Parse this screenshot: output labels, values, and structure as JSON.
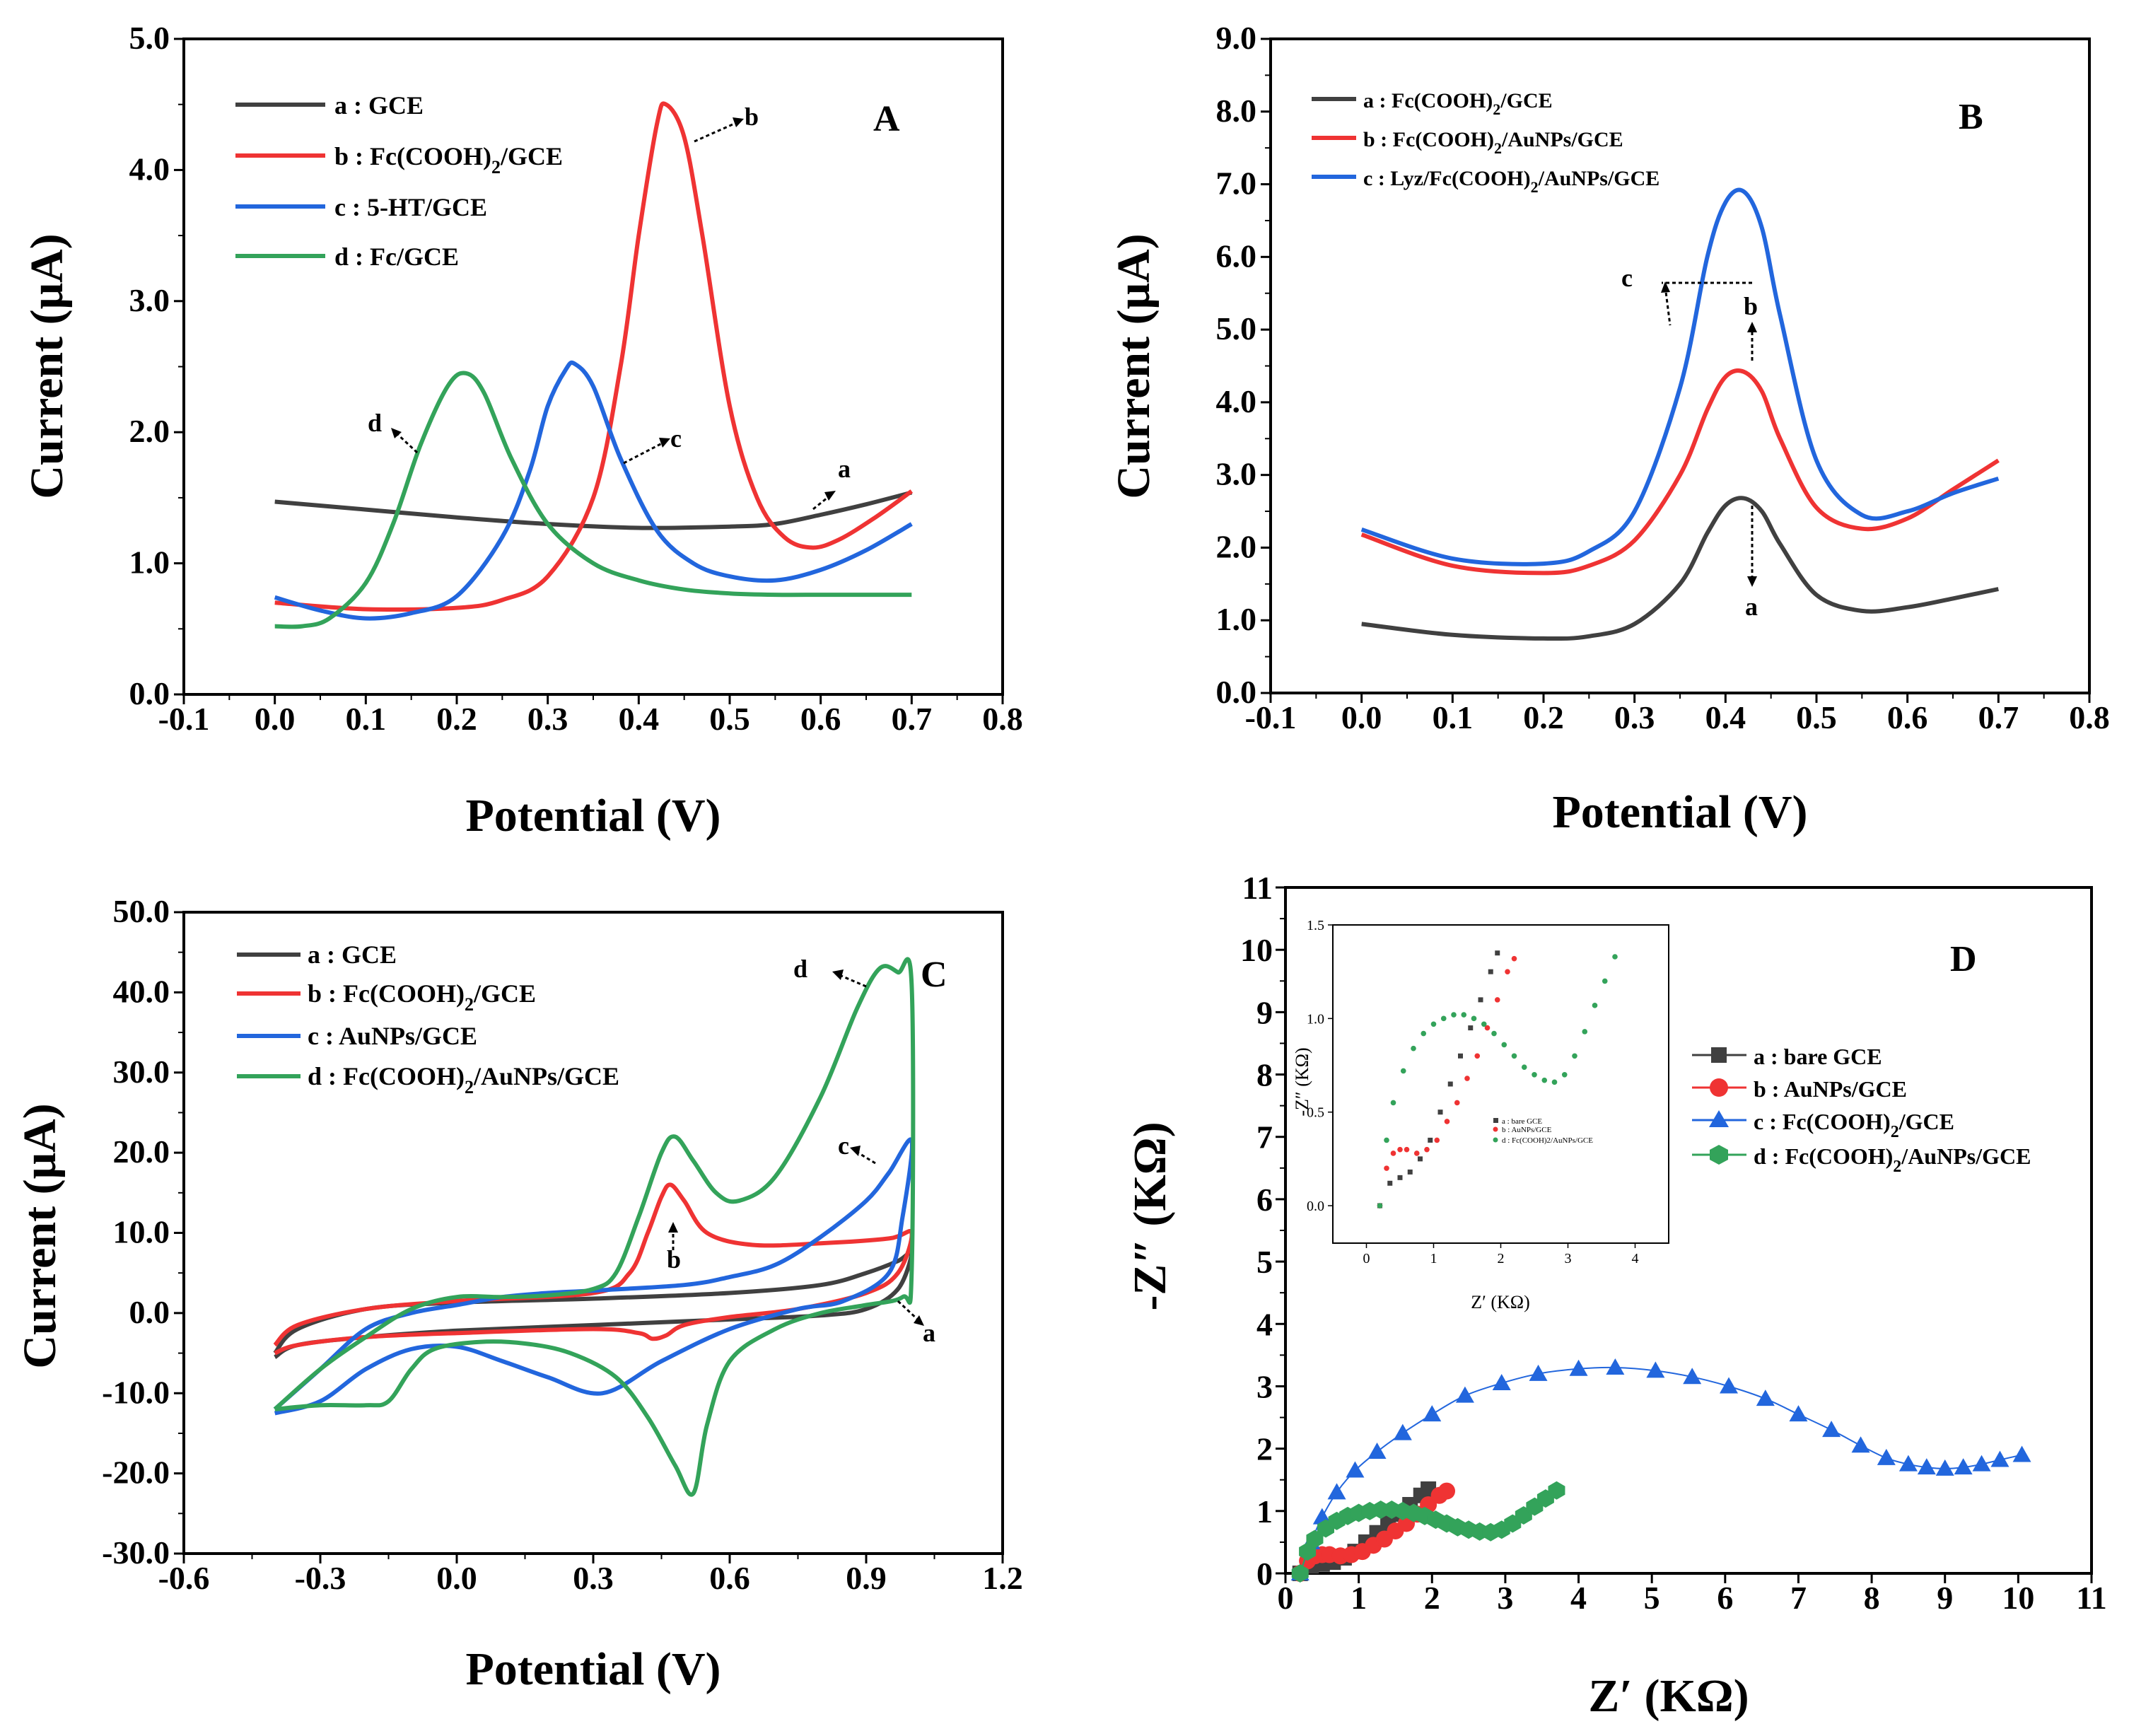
{
  "figure": {
    "colors": {
      "a": "#404040",
      "b": "#ef3333",
      "c": "#2266dd",
      "d": "#33a35a"
    },
    "subscript_2": "2"
  },
  "chart_data": [
    {
      "panel": "A",
      "type": "line",
      "letter": "A",
      "xlabel": "Potential (V)",
      "ylabel": "Current (μA)",
      "xlim": [
        -0.1,
        0.8
      ],
      "ylim": [
        0.0,
        5.0
      ],
      "xticks": [
        "-0.1",
        "0.0",
        "0.1",
        "0.2",
        "0.3",
        "0.4",
        "0.5",
        "0.6",
        "0.7",
        "0.8"
      ],
      "yticks": [
        "0.0",
        "1.0",
        "2.0",
        "3.0",
        "4.0",
        "5.0"
      ],
      "legend": [
        {
          "key": "a",
          "label": "a : GCE"
        },
        {
          "key": "b",
          "label": "b : Fc(COOH)",
          "sub": "2",
          "suffix": "/GCE"
        },
        {
          "key": "c",
          "label": "c : 5-HT/GCE"
        },
        {
          "key": "d",
          "label": "d : Fc/GCE"
        }
      ],
      "annotations": [
        "a",
        "b",
        "c",
        "d"
      ],
      "series": [
        {
          "name": "a : GCE",
          "key": "a",
          "x": [
            0.0,
            0.1,
            0.2,
            0.3,
            0.4,
            0.5,
            0.55,
            0.6,
            0.65,
            0.7
          ],
          "y": [
            1.47,
            1.41,
            1.35,
            1.3,
            1.27,
            1.28,
            1.3,
            1.37,
            1.45,
            1.54
          ]
        },
        {
          "name": "b : Fc(COOH)2/GCE",
          "key": "b",
          "x": [
            0.0,
            0.1,
            0.2,
            0.25,
            0.3,
            0.35,
            0.38,
            0.4,
            0.42,
            0.43,
            0.45,
            0.47,
            0.5,
            0.53,
            0.56,
            0.59,
            0.62,
            0.66,
            0.7
          ],
          "y": [
            0.7,
            0.65,
            0.66,
            0.72,
            0.9,
            1.5,
            2.5,
            3.5,
            4.35,
            4.5,
            4.25,
            3.5,
            2.2,
            1.5,
            1.2,
            1.12,
            1.18,
            1.35,
            1.55
          ]
        },
        {
          "name": "c : 5-HT/GCE",
          "key": "c",
          "x": [
            0.0,
            0.05,
            0.1,
            0.15,
            0.2,
            0.25,
            0.28,
            0.3,
            0.32,
            0.33,
            0.35,
            0.38,
            0.42,
            0.46,
            0.5,
            0.55,
            0.6,
            0.65,
            0.7
          ],
          "y": [
            0.74,
            0.64,
            0.58,
            0.62,
            0.75,
            1.2,
            1.7,
            2.2,
            2.48,
            2.52,
            2.35,
            1.8,
            1.25,
            1.0,
            0.9,
            0.87,
            0.95,
            1.1,
            1.3
          ]
        },
        {
          "name": "d : Fc/GCE",
          "key": "d",
          "x": [
            0.0,
            0.03,
            0.06,
            0.1,
            0.13,
            0.16,
            0.19,
            0.21,
            0.23,
            0.26,
            0.3,
            0.35,
            0.4,
            0.45,
            0.5,
            0.55,
            0.6,
            0.65,
            0.7
          ],
          "y": [
            0.52,
            0.52,
            0.58,
            0.85,
            1.3,
            1.9,
            2.35,
            2.45,
            2.3,
            1.8,
            1.3,
            1.0,
            0.87,
            0.8,
            0.77,
            0.76,
            0.76,
            0.76,
            0.76
          ]
        }
      ]
    },
    {
      "panel": "B",
      "type": "line",
      "letter": "B",
      "xlabel": "Potential (V)",
      "ylabel": "Current (μA)",
      "xlim": [
        -0.1,
        0.8
      ],
      "ylim": [
        0.0,
        9.0
      ],
      "xticks": [
        "-0.1",
        "0.0",
        "0.1",
        "0.2",
        "0.3",
        "0.4",
        "0.5",
        "0.6",
        "0.7",
        "0.8"
      ],
      "yticks": [
        "0.0",
        "1.0",
        "2.0",
        "3.0",
        "4.0",
        "5.0",
        "6.0",
        "7.0",
        "8.0",
        "9.0"
      ],
      "legend": [
        {
          "key": "a",
          "label": "a : Fc(COOH)",
          "sub": "2",
          "suffix": "/GCE"
        },
        {
          "key": "b",
          "label": "b : Fc(COOH)",
          "sub": "2",
          "suffix": "/AuNPs/GCE"
        },
        {
          "key": "c",
          "label": "c : Lyz/Fc(COOH)",
          "sub": "2",
          "suffix": "/AuNPs/GCE"
        }
      ],
      "annotations": [
        "a",
        "b",
        "c"
      ],
      "series": [
        {
          "name": "a : Fc(COOH)2/GCE",
          "key": "a",
          "x": [
            0.0,
            0.1,
            0.2,
            0.25,
            0.3,
            0.35,
            0.38,
            0.4,
            0.42,
            0.44,
            0.46,
            0.5,
            0.55,
            0.6,
            0.65,
            0.7
          ],
          "y": [
            0.95,
            0.8,
            0.75,
            0.78,
            0.95,
            1.5,
            2.2,
            2.58,
            2.68,
            2.5,
            2.05,
            1.35,
            1.13,
            1.18,
            1.3,
            1.43
          ]
        },
        {
          "name": "b : Fc(COOH)2/AuNPs/GCE",
          "key": "b",
          "x": [
            0.0,
            0.1,
            0.2,
            0.25,
            0.3,
            0.35,
            0.38,
            0.4,
            0.42,
            0.44,
            0.46,
            0.5,
            0.55,
            0.6,
            0.65,
            0.7
          ],
          "y": [
            2.18,
            1.75,
            1.65,
            1.75,
            2.1,
            3.0,
            3.9,
            4.35,
            4.42,
            4.15,
            3.5,
            2.55,
            2.26,
            2.4,
            2.8,
            3.2
          ]
        },
        {
          "name": "c : Lyz/Fc(COOH)2/AuNPs/GCE",
          "key": "c",
          "x": [
            0.0,
            0.1,
            0.2,
            0.25,
            0.3,
            0.35,
            0.38,
            0.4,
            0.42,
            0.44,
            0.46,
            0.5,
            0.55,
            0.6,
            0.65,
            0.7
          ],
          "y": [
            2.25,
            1.85,
            1.78,
            1.95,
            2.5,
            4.2,
            6.0,
            6.75,
            6.9,
            6.4,
            5.2,
            3.2,
            2.45,
            2.5,
            2.75,
            2.95
          ]
        }
      ]
    },
    {
      "panel": "C",
      "type": "line",
      "letter": "C",
      "xlabel": "Potential (V)",
      "ylabel": "Current (μA)",
      "xlim": [
        -0.6,
        1.2
      ],
      "ylim": [
        -30.0,
        50.0
      ],
      "xticks": [
        "-0.6",
        "-0.3",
        "0.0",
        "0.3",
        "0.6",
        "0.9",
        "1.2"
      ],
      "yticks": [
        "-30.0",
        "-20.0",
        "-10.0",
        "0.0",
        "10.0",
        "20.0",
        "30.0",
        "40.0",
        "50.0"
      ],
      "legend": [
        {
          "key": "a",
          "label": "a : GCE"
        },
        {
          "key": "b",
          "label": "b : Fc(COOH)",
          "sub": "2",
          "suffix": "/GCE"
        },
        {
          "key": "c",
          "label": "c : AuNPs/GCE"
        },
        {
          "key": "d",
          "label": "d : Fc(COOH)",
          "sub": "2",
          "suffix": "/AuNPs/GCE"
        }
      ],
      "annotations": [
        "a",
        "b",
        "c",
        "d"
      ],
      "series": [
        {
          "name": "a : GCE",
          "key": "a",
          "x": [
            -0.4,
            -0.35,
            -0.2,
            0.0,
            0.3,
            0.6,
            0.8,
            0.9,
            0.97,
            1.0,
            0.97,
            0.9,
            0.8,
            0.6,
            0.3,
            0.0,
            -0.2,
            -0.35,
            -0.4
          ],
          "y": [
            -5.0,
            -2.0,
            0.5,
            1.3,
            1.8,
            2.5,
            3.5,
            5.0,
            6.5,
            7.5,
            3.0,
            0.5,
            -0.3,
            -0.8,
            -1.5,
            -2.2,
            -3.0,
            -4.0,
            -5.5
          ]
        },
        {
          "name": "b : Fc(COOH)2/GCE",
          "key": "b",
          "x": [
            -0.4,
            -0.35,
            -0.2,
            0.0,
            0.3,
            0.38,
            0.42,
            0.45,
            0.47,
            0.5,
            0.55,
            0.65,
            0.8,
            0.95,
            1.0,
            0.97,
            0.9,
            0.75,
            0.6,
            0.5,
            0.46,
            0.43,
            0.4,
            0.3,
            0.0,
            -0.2,
            -0.35,
            -0.4
          ],
          "y": [
            -4.0,
            -1.5,
            0.5,
            1.5,
            2.5,
            5.0,
            10.0,
            14.5,
            16.0,
            14.0,
            10.0,
            8.5,
            8.7,
            9.3,
            10.0,
            5.0,
            2.5,
            0.5,
            -0.5,
            -1.5,
            -2.8,
            -3.2,
            -2.5,
            -2.0,
            -2.5,
            -3.0,
            -4.0,
            -5.0
          ]
        },
        {
          "name": "c : AuNPs/GCE",
          "key": "c",
          "x": [
            -0.4,
            -0.3,
            -0.2,
            -0.1,
            0.0,
            0.1,
            0.2,
            0.3,
            0.5,
            0.6,
            0.7,
            0.8,
            0.9,
            0.95,
            1.0,
            0.98,
            0.95,
            0.85,
            0.75,
            0.6,
            0.45,
            0.32,
            0.2,
            0.1,
            0.0,
            -0.1,
            -0.2,
            -0.3,
            -0.4
          ],
          "y": [
            -12.0,
            -7.0,
            -2.0,
            0.0,
            1.0,
            2.0,
            2.5,
            2.8,
            3.5,
            4.5,
            6.0,
            9.5,
            14.0,
            17.5,
            21.5,
            12.0,
            5.0,
            1.5,
            0.5,
            -2.0,
            -6.0,
            -10.0,
            -8.0,
            -6.0,
            -4.2,
            -4.5,
            -7.0,
            -11.0,
            -12.5
          ]
        },
        {
          "name": "d : Fc(COOH)2/AuNPs/GCE",
          "key": "d",
          "x": [
            -0.4,
            -0.3,
            -0.2,
            -0.1,
            0.0,
            0.1,
            0.2,
            0.3,
            0.35,
            0.4,
            0.45,
            0.48,
            0.52,
            0.57,
            0.62,
            0.7,
            0.8,
            0.88,
            0.93,
            0.97,
            1.0,
            1.0,
            0.98,
            0.9,
            0.8,
            0.7,
            0.6,
            0.55,
            0.52,
            0.48,
            0.42,
            0.35,
            0.25,
            0.15,
            0.05,
            -0.05,
            -0.1,
            -0.15,
            -0.2,
            -0.3,
            -0.4
          ],
          "y": [
            -12.0,
            -7.0,
            -3.0,
            0.5,
            2.0,
            2.0,
            2.2,
            3.0,
            5.0,
            12.0,
            20.0,
            22.0,
            19.0,
            15.0,
            14.0,
            17.0,
            27.0,
            38.0,
            43.0,
            42.5,
            41.0,
            5.0,
            2.0,
            1.0,
            0.0,
            -2.0,
            -6.0,
            -14.0,
            -22.5,
            -19.0,
            -13.0,
            -8.0,
            -5.0,
            -3.8,
            -3.6,
            -4.5,
            -7.0,
            -11.0,
            -11.5,
            -11.5,
            -12.0
          ]
        }
      ]
    },
    {
      "panel": "D",
      "type": "scatter",
      "letter": "D",
      "xlabel": "Z′  (KΩ)",
      "ylabel": "-Z″ (KΩ)",
      "xlim": [
        0,
        11
      ],
      "ylim": [
        0,
        11
      ],
      "xticks": [
        "0",
        "1",
        "2",
        "3",
        "4",
        "5",
        "6",
        "7",
        "8",
        "9",
        "10",
        "11"
      ],
      "yticks": [
        "0",
        "1",
        "2",
        "3",
        "4",
        "5",
        "6",
        "7",
        "8",
        "9",
        "10",
        "11"
      ],
      "legend": [
        {
          "key": "a",
          "label": "a : bare GCE",
          "marker": "square"
        },
        {
          "key": "b",
          "label": "b : AuNPs/GCE",
          "marker": "circle"
        },
        {
          "key": "c",
          "label": "c : Fc(COOH)",
          "sub": "2",
          "suffix": "/GCE",
          "marker": "triangle"
        },
        {
          "key": "d",
          "label": "d : Fc(COOH)",
          "sub": "2",
          "suffix": "/AuNPs/GCE",
          "marker": "hexagon"
        }
      ],
      "series": [
        {
          "name": "a : bare GCE",
          "key": "a",
          "marker": "square",
          "x": [
            0.2,
            0.35,
            0.5,
            0.65,
            0.8,
            0.95,
            1.1,
            1.25,
            1.4,
            1.55,
            1.7,
            1.85,
            1.95
          ],
          "y": [
            0.0,
            0.12,
            0.15,
            0.18,
            0.25,
            0.35,
            0.5,
            0.65,
            0.8,
            0.95,
            1.1,
            1.25,
            1.35
          ]
        },
        {
          "name": "b : AuNPs/GCE",
          "key": "b",
          "marker": "circle",
          "x": [
            0.2,
            0.3,
            0.4,
            0.5,
            0.6,
            0.75,
            0.9,
            1.05,
            1.2,
            1.35,
            1.5,
            1.65,
            1.8,
            1.95,
            2.1,
            2.2
          ],
          "y": [
            0.0,
            0.2,
            0.28,
            0.3,
            0.3,
            0.28,
            0.3,
            0.35,
            0.45,
            0.55,
            0.68,
            0.8,
            0.95,
            1.1,
            1.25,
            1.32
          ]
        },
        {
          "name": "c : Fc(COOH)2/GCE",
          "key": "c",
          "marker": "triangle",
          "x": [
            0.2,
            0.35,
            0.5,
            0.7,
            0.95,
            1.25,
            1.6,
            2.0,
            2.45,
            2.95,
            3.45,
            4.0,
            4.5,
            5.05,
            5.55,
            6.05,
            6.55,
            7.0,
            7.45,
            7.85,
            8.2,
            8.5,
            8.75,
            9.0,
            9.25,
            9.5,
            9.75,
            10.05
          ],
          "y": [
            0.0,
            0.5,
            0.9,
            1.3,
            1.65,
            1.95,
            2.25,
            2.55,
            2.85,
            3.05,
            3.2,
            3.28,
            3.3,
            3.25,
            3.15,
            3.0,
            2.8,
            2.55,
            2.3,
            2.05,
            1.85,
            1.75,
            1.7,
            1.68,
            1.7,
            1.75,
            1.82,
            1.9
          ]
        },
        {
          "name": "d : Fc(COOH)2/AuNPs/GCE",
          "key": "d",
          "marker": "hexagon",
          "x": [
            0.2,
            0.3,
            0.4,
            0.55,
            0.7,
            0.85,
            1.0,
            1.15,
            1.3,
            1.45,
            1.6,
            1.75,
            1.9,
            2.05,
            2.2,
            2.35,
            2.5,
            2.65,
            2.8,
            2.95,
            3.1,
            3.25,
            3.4,
            3.55,
            3.7
          ],
          "y": [
            0.0,
            0.35,
            0.55,
            0.72,
            0.84,
            0.92,
            0.97,
            1.0,
            1.02,
            1.02,
            1.0,
            0.97,
            0.92,
            0.86,
            0.8,
            0.74,
            0.7,
            0.67,
            0.66,
            0.7,
            0.8,
            0.93,
            1.07,
            1.2,
            1.33
          ]
        }
      ],
      "inset": {
        "xlabel": "Z′  (KΩ)",
        "ylabel": "-Z″ (KΩ)",
        "xlim": [
          -0.5,
          4.5
        ],
        "ylim": [
          -0.2,
          1.5
        ],
        "xticks": [
          "0",
          "1",
          "2",
          "3",
          "4"
        ],
        "yticks": [
          "0.0",
          "0.5",
          "1.0",
          "1.5"
        ],
        "legend": [
          "a : bare GCE",
          "b : AuNPs/GCE",
          "d : Fc(COOH)2/AuNPs/GCE"
        ]
      }
    }
  ]
}
